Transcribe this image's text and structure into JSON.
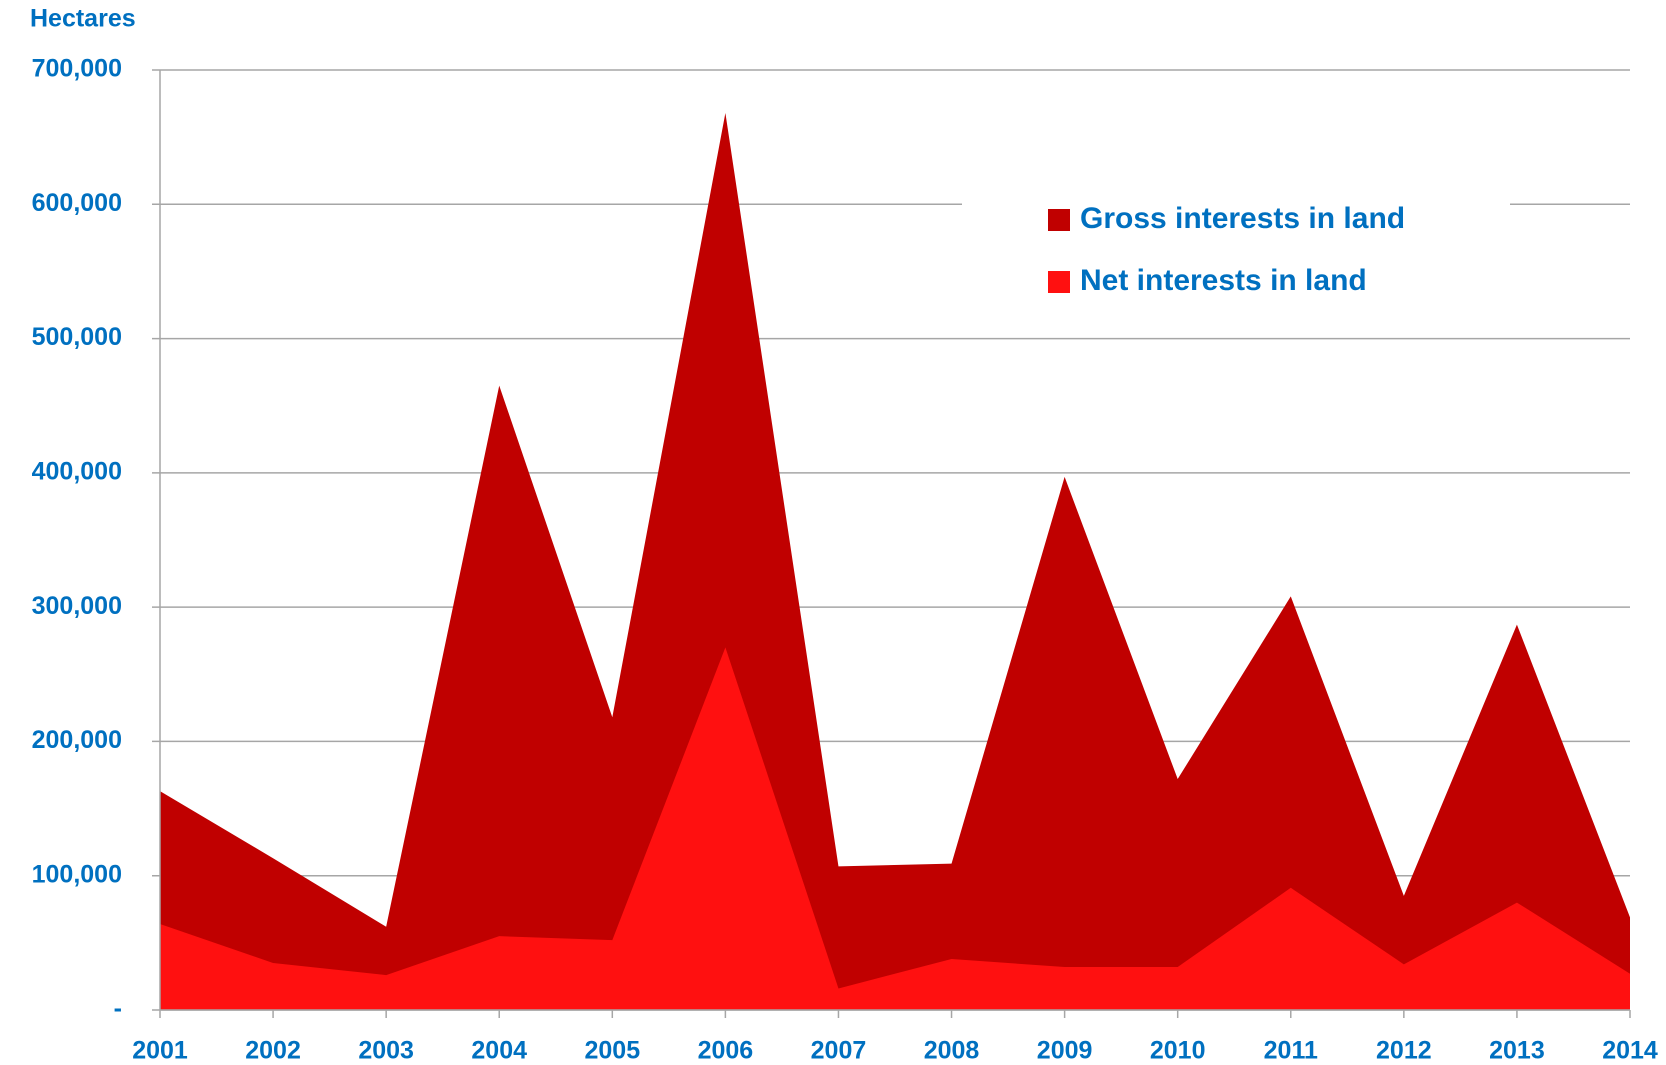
{
  "chart_data": {
    "type": "area",
    "y_label": "Hectares",
    "categories": [
      "2001",
      "2002",
      "2003",
      "2004",
      "2005",
      "2006",
      "2007",
      "2008",
      "2009",
      "2010",
      "2011",
      "2012",
      "2013",
      "2014"
    ],
    "series": [
      {
        "name": "Gross interests in land",
        "color": "#c00000",
        "values": [
          163000,
          113000,
          62000,
          465000,
          218000,
          668000,
          107000,
          109000,
          397000,
          172000,
          308000,
          85000,
          287000,
          69000
        ]
      },
      {
        "name": "Net interests in land",
        "color": "#ff1010",
        "values": [
          64000,
          35000,
          26000,
          55000,
          52000,
          270000,
          16000,
          38000,
          32000,
          32000,
          91000,
          34000,
          80000,
          27000
        ]
      }
    ],
    "ylim": [
      0,
      700000
    ],
    "yticks": [
      {
        "value": 0,
        "label": "-"
      },
      {
        "value": 100000,
        "label": "100,000"
      },
      {
        "value": 200000,
        "label": "200,000"
      },
      {
        "value": 300000,
        "label": "300,000"
      },
      {
        "value": 400000,
        "label": "400,000"
      },
      {
        "value": 500000,
        "label": "500,000"
      },
      {
        "value": 600000,
        "label": "600,000"
      },
      {
        "value": 700000,
        "label": "700,000"
      }
    ],
    "grid": true,
    "legend": "upper right"
  }
}
